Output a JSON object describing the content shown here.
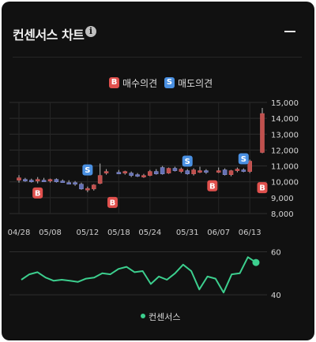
{
  "header": {
    "title": "컨센서스 차트",
    "info_icon": "info-icon",
    "collapse_icon": "minus-icon"
  },
  "legend": {
    "buy": {
      "badge": "B",
      "label": "매수의견",
      "color": "#e0504d"
    },
    "sell": {
      "badge": "S",
      "label": "매도의견",
      "color": "#4a90e2"
    }
  },
  "bottom_legend": {
    "label": "컨센서스",
    "color": "#3ccf8e"
  },
  "chart_data": [
    {
      "type": "candlestick",
      "title": "",
      "xlabel": "",
      "ylabel": "",
      "ylim": [
        8000,
        15000
      ],
      "yticks": [
        "8,000",
        "9,000",
        "10,000",
        "11,000",
        "12,000",
        "13,000",
        "14,000",
        "15,000"
      ],
      "ytick_values": [
        8000,
        9000,
        10000,
        11000,
        12000,
        13000,
        14000,
        15000
      ],
      "xtick_labels": [
        "04/28",
        "05/08",
        "05/12",
        "05/18",
        "05/24",
        "05/31",
        "06/07",
        "06/13"
      ],
      "xtick_index": [
        0,
        5,
        10,
        15,
        20,
        25,
        30,
        35
      ],
      "grid": true,
      "up_color": "#c0504d",
      "down_color": "#6470b4",
      "candles": [
        {
          "o": 10100,
          "h": 10420,
          "l": 9950,
          "c": 10250
        },
        {
          "o": 10150,
          "h": 10250,
          "l": 10000,
          "c": 10100
        },
        {
          "o": 10100,
          "h": 10200,
          "l": 9950,
          "c": 10050
        },
        {
          "o": 10050,
          "h": 10300,
          "l": 9900,
          "c": 10150
        },
        {
          "o": 10100,
          "h": 10250,
          "l": 10000,
          "c": 10050
        },
        {
          "o": 10050,
          "h": 10200,
          "l": 9950,
          "c": 10150
        },
        {
          "o": 10150,
          "h": 10220,
          "l": 9950,
          "c": 10000
        },
        {
          "o": 10050,
          "h": 10150,
          "l": 9950,
          "c": 9980
        },
        {
          "o": 9950,
          "h": 10100,
          "l": 9850,
          "c": 9900
        },
        {
          "o": 9950,
          "h": 10050,
          "l": 9750,
          "c": 9850
        },
        {
          "o": 9850,
          "h": 9950,
          "l": 9500,
          "c": 9550
        },
        {
          "o": 9520,
          "h": 9700,
          "l": 9350,
          "c": 9580
        },
        {
          "o": 9550,
          "h": 9850,
          "l": 9450,
          "c": 9800
        },
        {
          "o": 9900,
          "h": 11150,
          "l": 9850,
          "c": 10400
        },
        {
          "o": 10550,
          "h": 10800,
          "l": 10450,
          "c": 10650
        },
        {
          "o": 10600,
          "h": 10750,
          "l": 10500,
          "c": 10550
        },
        {
          "o": 10550,
          "h": 10700,
          "l": 10450,
          "c": 10650
        },
        {
          "o": 10550,
          "h": 10650,
          "l": 10300,
          "c": 10400
        },
        {
          "o": 10450,
          "h": 10550,
          "l": 10300,
          "c": 10350
        },
        {
          "o": 10350,
          "h": 10500,
          "l": 10250,
          "c": 10400
        },
        {
          "o": 10400,
          "h": 10750,
          "l": 10350,
          "c": 10650
        },
        {
          "o": 10650,
          "h": 10800,
          "l": 10450,
          "c": 10500
        },
        {
          "o": 10900,
          "h": 11000,
          "l": 10450,
          "c": 10500
        },
        {
          "o": 10550,
          "h": 10900,
          "l": 10500,
          "c": 10850
        },
        {
          "o": 10850,
          "h": 10950,
          "l": 10650,
          "c": 10700
        },
        {
          "o": 10650,
          "h": 10900,
          "l": 10550,
          "c": 10800
        },
        {
          "o": 10700,
          "h": 10800,
          "l": 10450,
          "c": 10500
        },
        {
          "o": 10500,
          "h": 10850,
          "l": 10400,
          "c": 10750
        },
        {
          "o": 10650,
          "h": 10950,
          "l": 10550,
          "c": 10700
        },
        {
          "o": 10700,
          "h": 10800,
          "l": 10500,
          "c": 10600
        },
        {
          "o": 10650,
          "h": 10900,
          "l": 10550,
          "c": 10700
        },
        {
          "o": 10750,
          "h": 10850,
          "l": 10400,
          "c": 10450
        },
        {
          "o": 10450,
          "h": 10750,
          "l": 10350,
          "c": 10700
        },
        {
          "o": 10700,
          "h": 10900,
          "l": 10600,
          "c": 10800
        },
        {
          "o": 10750,
          "h": 10850,
          "l": 10600,
          "c": 10700
        },
        {
          "o": 10650,
          "h": 11400,
          "l": 10550,
          "c": 11300
        },
        {
          "o": 11850,
          "h": 14650,
          "l": 11800,
          "c": 14300
        }
      ],
      "signals": [
        {
          "type": "B",
          "index": 3,
          "price": 9300
        },
        {
          "type": "S",
          "index": 11,
          "price": 10750
        },
        {
          "type": "B",
          "index": 15,
          "price": 8700
        },
        {
          "type": "S",
          "index": 27,
          "price": 11300
        },
        {
          "type": "B",
          "index": 31,
          "price": 9750
        },
        {
          "type": "S",
          "index": 36,
          "price": 11450
        },
        {
          "type": "B",
          "index": 39,
          "price": 9630
        }
      ]
    },
    {
      "type": "line",
      "title": "",
      "ylim": [
        36,
        62
      ],
      "yticks": [
        "40",
        "60"
      ],
      "ytick_values": [
        40,
        60
      ],
      "series": [
        {
          "name": "컨센서스",
          "values": [
            47,
            49.5,
            50.5,
            48,
            46.5,
            47,
            46.5,
            46,
            47.5,
            48,
            50,
            49.5,
            52,
            53,
            50.5,
            51,
            45,
            48.5,
            47,
            50,
            54,
            51,
            42.5,
            48.5,
            47.5,
            41,
            49.5,
            50,
            57.5,
            55
          ]
        }
      ]
    }
  ]
}
